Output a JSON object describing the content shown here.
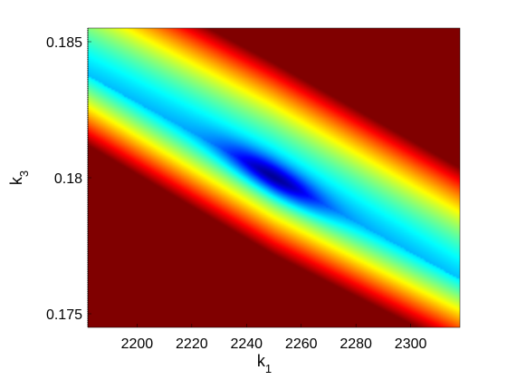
{
  "chart_data": {
    "type": "heatmap",
    "title": "",
    "xlabel": "k",
    "xlabel_sub": "1",
    "ylabel": "k",
    "ylabel_sub": "3",
    "xlim": [
      2182,
      2318
    ],
    "ylim": [
      0.1745,
      0.1855
    ],
    "xticks": [
      2200,
      2220,
      2240,
      2260,
      2280,
      2300
    ],
    "xtick_labels": [
      "2200",
      "2220",
      "2240",
      "2260",
      "2280",
      "2300"
    ],
    "yticks": [
      0.175,
      0.18,
      0.185
    ],
    "ytick_labels": [
      "0.175",
      "0.18",
      "0.185"
    ],
    "colormap": "jet",
    "minimum": {
      "x": 2250,
      "y": 0.18
    },
    "grid": false,
    "legend": "none"
  }
}
